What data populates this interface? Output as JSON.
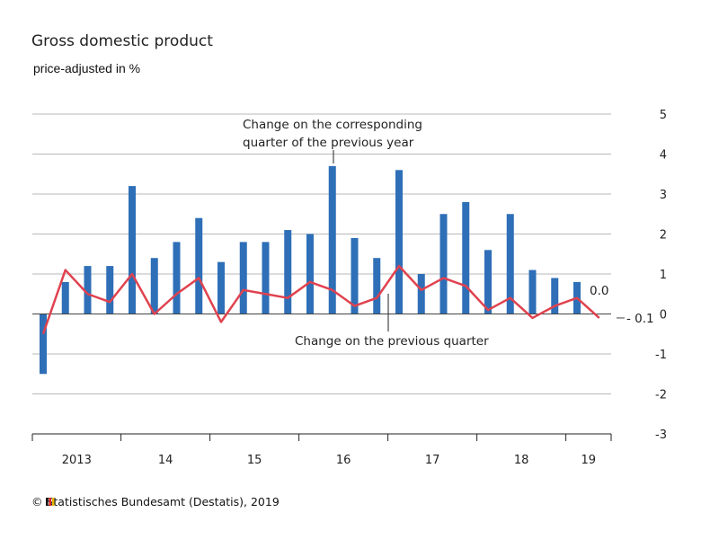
{
  "title": "Gross domestic product",
  "subtitle": "price-adjusted in %",
  "source": "© Statistisches Bundesamt (Destatis), 2019",
  "colors": {
    "bars": "#2e6fb7",
    "line": "#e0424f",
    "grid": "#b9b9b9",
    "text": "#222222"
  },
  "chart_data": {
    "type": "bar",
    "ylim": [
      -3,
      5
    ],
    "yticks": [
      "5",
      "4",
      "3",
      "2",
      "1",
      "0",
      "-1",
      "-2",
      "-3"
    ],
    "year_labels": [
      "2013",
      "14",
      "15",
      "16",
      "17",
      "18",
      "19"
    ],
    "year_quarter_counts": [
      4,
      4,
      4,
      4,
      4,
      4,
      2
    ],
    "grid": true,
    "series": [
      {
        "name": "Change on the corresponding quarter of the previous year",
        "type": "bar",
        "values": [
          -1.5,
          0.8,
          1.2,
          1.2,
          3.2,
          1.4,
          1.8,
          2.4,
          1.3,
          1.8,
          1.8,
          2.1,
          2.0,
          3.7,
          1.9,
          1.4,
          3.6,
          1.0,
          2.5,
          2.8,
          1.6,
          2.5,
          1.1,
          0.9,
          0.8,
          0.0
        ]
      },
      {
        "name": "Change on the previous quarter",
        "type": "line",
        "values": [
          -0.5,
          1.1,
          0.5,
          0.3,
          1.0,
          0.0,
          0.5,
          0.9,
          -0.2,
          0.6,
          0.5,
          0.4,
          0.8,
          0.6,
          0.2,
          0.4,
          1.2,
          0.6,
          0.9,
          0.7,
          0.1,
          0.4,
          -0.1,
          0.2,
          0.4,
          -0.1
        ]
      }
    ],
    "annotations": {
      "bar_series_line1": "Change on the corresponding",
      "bar_series_line2": "quarter of the previous year",
      "line_series": "Change on the previous quarter",
      "last_bar_value": "0.0",
      "last_line_value": "- 0.1"
    }
  }
}
